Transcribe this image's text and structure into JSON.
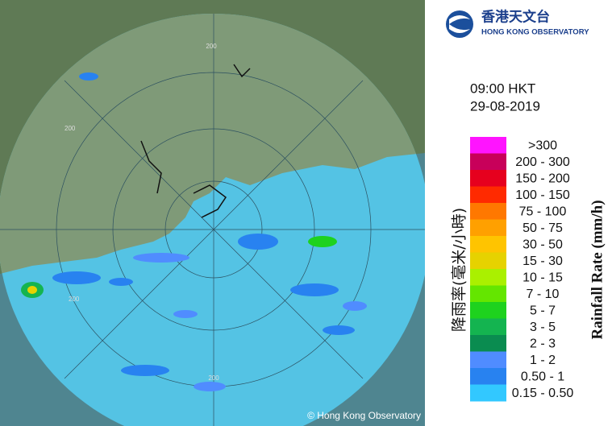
{
  "header": {
    "logo_chinese": "香港天文台",
    "logo_english": "HONG KONG OBSERVATORY"
  },
  "time": "09:00 HKT",
  "date": "29-08-2019",
  "legend": {
    "title_chinese": "降雨率(毫米/小時)",
    "title_english": "Rainfall Rate (mm/h)",
    "bins": [
      {
        "label": ">300",
        "color": "#ff14ff"
      },
      {
        "label": "200 - 300",
        "color": "#c8005a"
      },
      {
        "label": "150 - 200",
        "color": "#e6001e"
      },
      {
        "label": "100 - 150",
        "color": "#ff2a00"
      },
      {
        "label": "75 - 100",
        "color": "#ff7800"
      },
      {
        "label": "50 - 75",
        "color": "#ffa000"
      },
      {
        "label": "30 - 50",
        "color": "#ffc400"
      },
      {
        "label": "15 - 30",
        "color": "#e6d200"
      },
      {
        "label": "10 - 15",
        "color": "#aaf000"
      },
      {
        "label": "7 - 10",
        "color": "#64e600"
      },
      {
        "label": "5 - 7",
        "color": "#1ed21e"
      },
      {
        "label": "3 - 5",
        "color": "#14b450"
      },
      {
        "label": "2 - 3",
        "color": "#0a8c50"
      },
      {
        "label": "1 - 2",
        "color": "#508cff"
      },
      {
        "label": "0.50 - 1",
        "color": "#2882f0"
      },
      {
        "label": "0.15 - 0.50",
        "color": "#32c8ff"
      }
    ]
  },
  "map": {
    "ring_labels": [
      "200",
      "200",
      "200",
      "200"
    ],
    "copyright": "© Hong Kong Observatory"
  }
}
